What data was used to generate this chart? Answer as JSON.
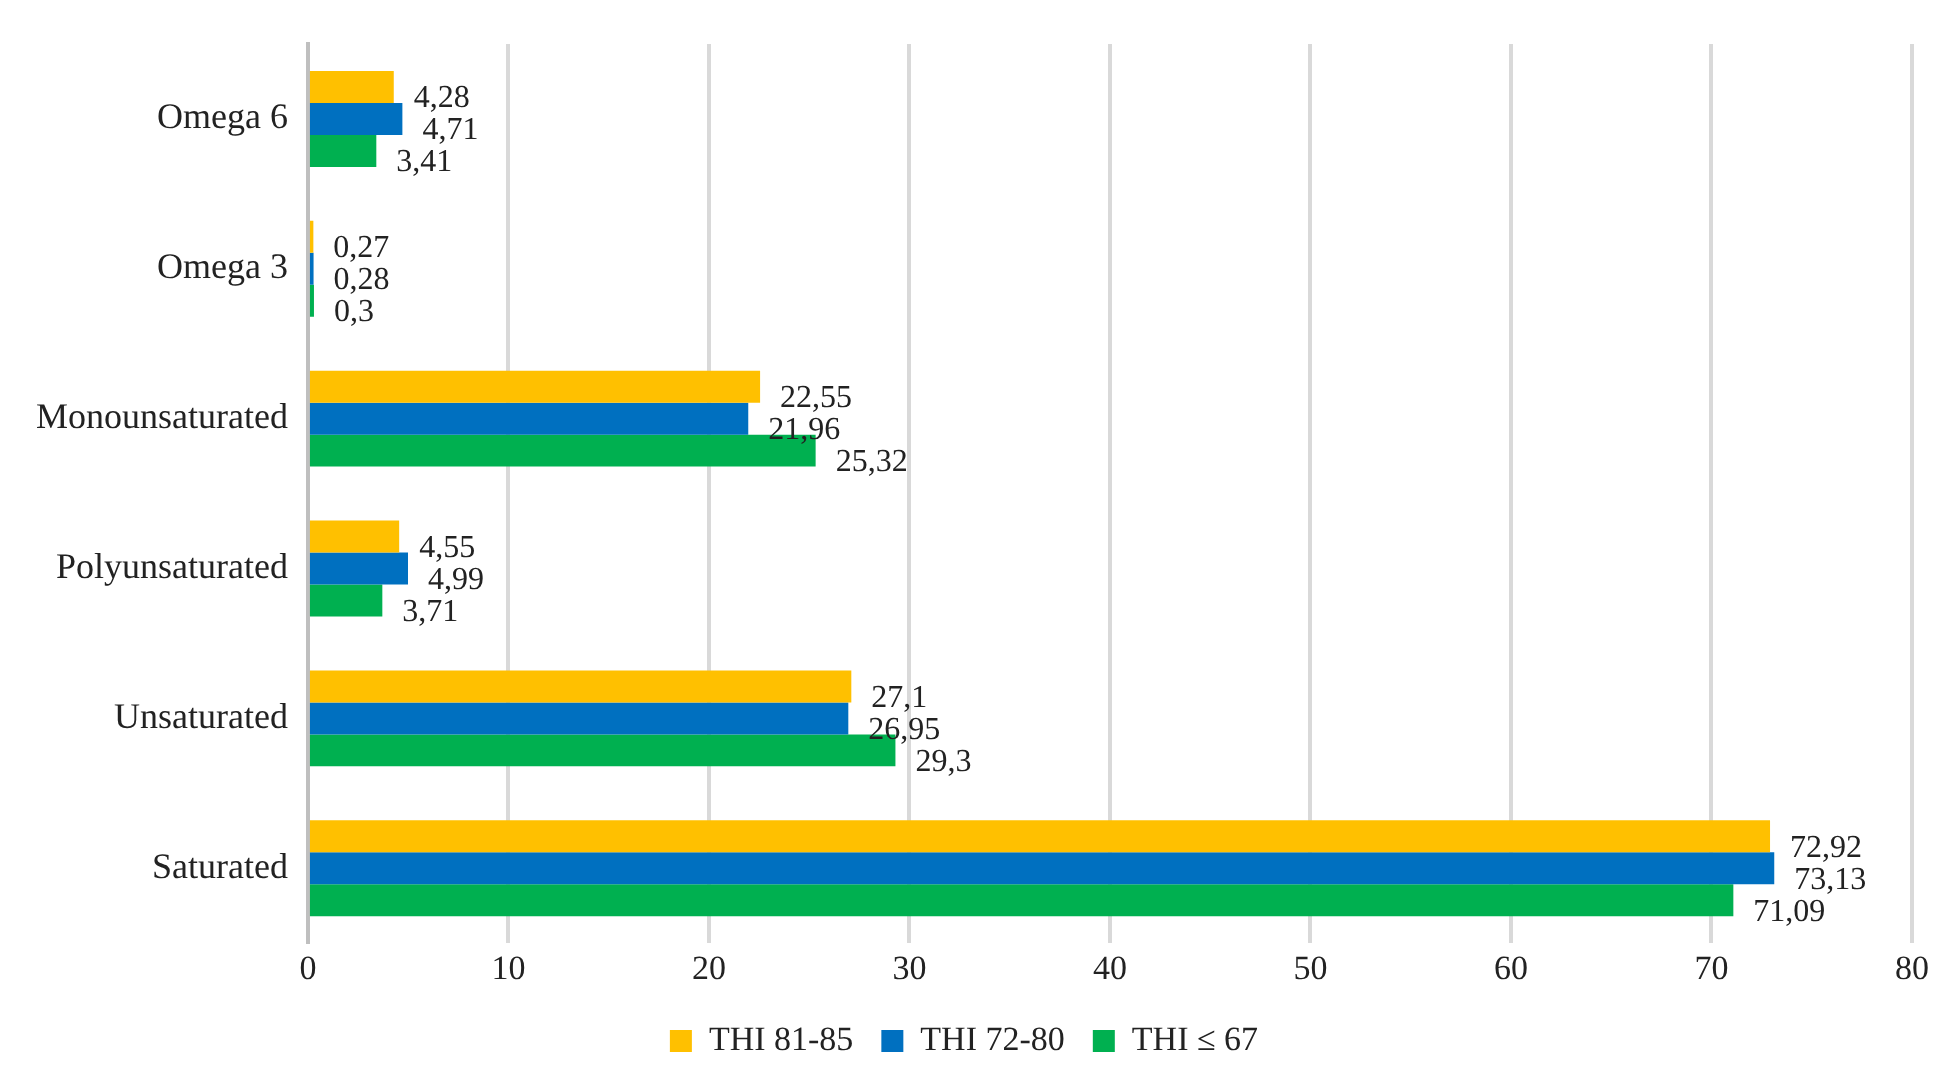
{
  "chart_data": {
    "type": "bar",
    "orientation": "horizontal",
    "categories": [
      "Omega 6",
      "Omega 3",
      "Monounsaturated",
      "Polyunsaturated",
      "Unsaturated",
      "Saturated"
    ],
    "series": [
      {
        "name": "THI 81-85",
        "color": "#ffc000",
        "values": [
          4.28,
          0.27,
          22.55,
          4.55,
          27.1,
          72.92
        ],
        "value_labels": [
          "4,28",
          "0,27",
          "22,55",
          "4,55",
          "27,1",
          "72,92"
        ]
      },
      {
        "name": "THI 72-80",
        "color": "#0070c0",
        "values": [
          4.71,
          0.28,
          21.96,
          4.99,
          26.95,
          73.13
        ],
        "value_labels": [
          "4,71",
          "0,28",
          "21,96",
          "4,99",
          "26,95",
          "73,13"
        ]
      },
      {
        "name": "THI ≤ 67",
        "color": "#00b050",
        "values": [
          3.41,
          0.3,
          25.32,
          3.71,
          29.3,
          71.09
        ],
        "value_labels": [
          "3,41",
          "0,3",
          "25,32",
          "3,71",
          "29,3",
          "71,09"
        ]
      }
    ],
    "xlim": [
      0,
      80
    ],
    "xticks": [
      0,
      10,
      20,
      30,
      40,
      50,
      60,
      70,
      80
    ],
    "grid": "x",
    "legend": "bottom"
  }
}
